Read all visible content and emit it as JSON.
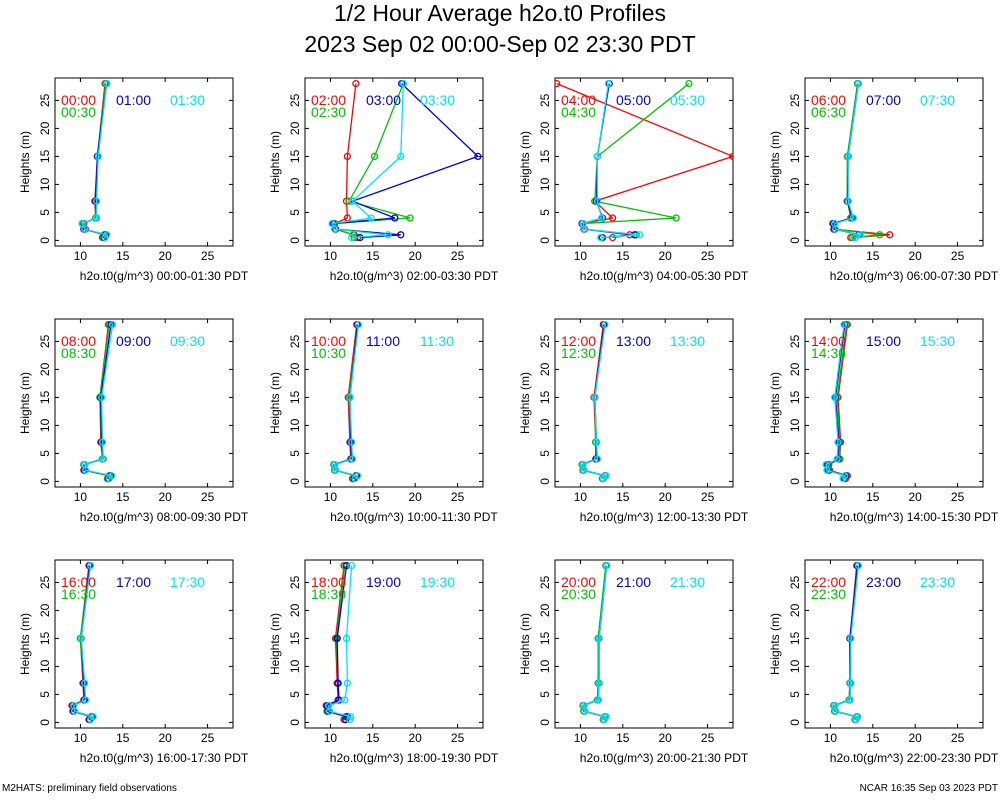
{
  "header": {
    "title": "1/2 Hour Average h2o.t0 Profiles",
    "subtitle": "2023 Sep 02 00:00-Sep 02 23:30 PDT"
  },
  "footer": {
    "left": "M2HATS: preliminary field observations",
    "right": "NCAR 16:35 Sep 03 2023 PDT"
  },
  "colors": {
    "first": "#ff0000",
    "second": "#00c000",
    "third": "#0000d0",
    "fourth": "#00e0ff"
  },
  "chart_data": [
    {
      "type": "line",
      "xlabel": "h2o.t0(g/m^3) 00:00-01:30 PDT",
      "ylabel": "Heights (m)",
      "xlim": [
        7,
        28
      ],
      "ylim": [
        -1,
        29
      ],
      "xticks": [
        "10",
        "15",
        "20",
        "25"
      ],
      "yticks": [
        "0",
        "5",
        "10",
        "15",
        "20",
        "25"
      ],
      "heights": [
        0.5,
        1,
        2,
        3,
        4,
        7,
        15,
        28
      ],
      "series": [
        {
          "name": "00:00",
          "values": [
            12.6,
            12.8,
            10.6,
            10.4,
            11.8,
            11.7,
            12.0,
            12.9
          ]
        },
        {
          "name": "00:30",
          "values": [
            12.7,
            12.9,
            10.5,
            10.3,
            11.8,
            11.8,
            12.0,
            13.0
          ]
        },
        {
          "name": "01:00",
          "values": [
            12.8,
            13.0,
            10.4,
            10.2,
            11.9,
            11.8,
            12.0,
            13.1
          ]
        },
        {
          "name": "01:30",
          "values": [
            12.9,
            13.1,
            10.5,
            10.2,
            11.9,
            11.9,
            12.1,
            13.1
          ]
        }
      ]
    },
    {
      "type": "line",
      "xlabel": "h2o.t0(g/m^3) 02:00-03:30 PDT",
      "ylabel": "Heights (m)",
      "xlim": [
        7,
        28
      ],
      "ylim": [
        -1,
        29
      ],
      "xticks": [
        "10",
        "15",
        "20",
        "25"
      ],
      "yticks": [
        "0",
        "5",
        "10",
        "15",
        "20",
        "25"
      ],
      "heights": [
        0.5,
        1,
        2,
        3,
        4,
        7,
        15,
        28
      ],
      "series": [
        {
          "name": "02:00",
          "values": [
            13.2,
            12.8,
            10.6,
            10.5,
            12.0,
            11.9,
            12.0,
            13.0
          ]
        },
        {
          "name": "02:30",
          "values": [
            12.8,
            12.7,
            10.6,
            10.4,
            19.4,
            12.2,
            15.2,
            18.6
          ]
        },
        {
          "name": "03:00",
          "values": [
            13.5,
            18.3,
            10.6,
            10.3,
            17.6,
            12.6,
            27.4,
            18.4
          ]
        },
        {
          "name": "03:30",
          "values": [
            12.5,
            16.8,
            10.5,
            10.2,
            14.8,
            12.6,
            18.3,
            18.6
          ]
        }
      ]
    },
    {
      "type": "line",
      "xlabel": "h2o.t0(g/m^3) 04:00-05:30 PDT",
      "ylabel": "Heights (m)",
      "xlim": [
        7,
        28
      ],
      "ylim": [
        -1,
        29
      ],
      "xticks": [
        "10",
        "15",
        "20",
        "25"
      ],
      "yticks": [
        "0",
        "5",
        "10",
        "15",
        "20",
        "25"
      ],
      "heights": [
        0.5,
        1,
        2,
        3,
        4,
        7,
        15,
        28
      ],
      "series": [
        {
          "name": "04:00",
          "values": [
            13.8,
            15.8,
            10.5,
            10.3,
            13.8,
            11.7,
            28.0,
            7.2
          ]
        },
        {
          "name": "04:30",
          "values": [
            12.5,
            16.6,
            10.4,
            10.2,
            21.3,
            11.7,
            12.0,
            22.8
          ]
        },
        {
          "name": "05:00",
          "values": [
            12.6,
            16.4,
            10.4,
            10.2,
            12.6,
            11.9,
            12.0,
            13.4
          ]
        },
        {
          "name": "05:30",
          "values": [
            12.4,
            17.0,
            10.4,
            10.3,
            12.5,
            12.0,
            12.0,
            13.3
          ]
        }
      ]
    },
    {
      "type": "line",
      "xlabel": "h2o.t0(g/m^3) 06:00-07:30 PDT",
      "ylabel": "Heights (m)",
      "xlim": [
        7,
        28
      ],
      "ylim": [
        -1,
        29
      ],
      "xticks": [
        "10",
        "15",
        "20",
        "25"
      ],
      "yticks": [
        "0",
        "5",
        "10",
        "15",
        "20",
        "25"
      ],
      "heights": [
        0.5,
        1,
        2,
        3,
        4,
        7,
        15,
        28
      ],
      "series": [
        {
          "name": "06:00",
          "values": [
            12.4,
            17.0,
            10.4,
            10.3,
            12.4,
            12.0,
            12.0,
            13.2
          ]
        },
        {
          "name": "06:30",
          "values": [
            12.6,
            15.8,
            10.5,
            10.4,
            12.5,
            12.0,
            12.0,
            13.2
          ]
        },
        {
          "name": "07:00",
          "values": [
            12.9,
            13.4,
            10.5,
            10.3,
            12.6,
            12.0,
            12.1,
            13.3
          ]
        },
        {
          "name": "07:30",
          "values": [
            12.9,
            13.5,
            10.6,
            10.5,
            12.7,
            12.1,
            12.1,
            13.3
          ]
        }
      ]
    },
    {
      "type": "line",
      "xlabel": "h2o.t0(g/m^3) 08:00-09:30 PDT",
      "ylabel": "Heights (m)",
      "xlim": [
        7,
        28
      ],
      "ylim": [
        -1,
        29
      ],
      "xticks": [
        "10",
        "15",
        "20",
        "25"
      ],
      "yticks": [
        "0",
        "5",
        "10",
        "15",
        "20",
        "25"
      ],
      "heights": [
        0.5,
        1,
        2,
        3,
        4,
        7,
        15,
        28
      ],
      "series": [
        {
          "name": "08:00",
          "values": [
            13.2,
            13.4,
            10.4,
            10.4,
            12.6,
            12.4,
            12.3,
            13.3
          ]
        },
        {
          "name": "08:30",
          "values": [
            13.2,
            13.5,
            10.5,
            10.4,
            12.6,
            12.5,
            12.3,
            13.4
          ]
        },
        {
          "name": "09:00",
          "values": [
            13.3,
            13.6,
            10.5,
            10.5,
            12.7,
            12.5,
            12.4,
            13.6
          ]
        },
        {
          "name": "09:30",
          "values": [
            13.4,
            13.7,
            10.6,
            10.5,
            12.7,
            12.6,
            12.5,
            13.8
          ]
        }
      ]
    },
    {
      "type": "line",
      "xlabel": "h2o.t0(g/m^3) 10:00-11:30 PDT",
      "ylabel": "Heights (m)",
      "xlim": [
        7,
        28
      ],
      "ylim": [
        -1,
        29
      ],
      "xticks": [
        "10",
        "15",
        "20",
        "25"
      ],
      "yticks": [
        "0",
        "5",
        "10",
        "15",
        "20",
        "25"
      ],
      "heights": [
        0.5,
        1,
        2,
        3,
        4,
        7,
        15,
        28
      ],
      "series": [
        {
          "name": "10:00",
          "values": [
            12.6,
            13.0,
            10.5,
            10.4,
            12.4,
            12.3,
            12.1,
            13.1
          ]
        },
        {
          "name": "10:30",
          "values": [
            12.7,
            13.1,
            10.5,
            10.4,
            12.5,
            12.4,
            12.2,
            13.2
          ]
        },
        {
          "name": "11:00",
          "values": [
            12.8,
            13.1,
            10.6,
            10.5,
            12.5,
            12.4,
            12.3,
            13.2
          ]
        },
        {
          "name": "11:30",
          "values": [
            12.9,
            13.2,
            10.6,
            10.5,
            12.6,
            12.5,
            12.3,
            13.3
          ]
        }
      ]
    },
    {
      "type": "line",
      "xlabel": "h2o.t0(g/m^3) 12:00-13:30 PDT",
      "ylabel": "Heights (m)",
      "xlim": [
        7,
        28
      ],
      "ylim": [
        -1,
        29
      ],
      "xticks": [
        "10",
        "15",
        "20",
        "25"
      ],
      "yticks": [
        "0",
        "5",
        "10",
        "15",
        "20",
        "25"
      ],
      "heights": [
        0.5,
        1,
        2,
        3,
        4,
        7,
        15,
        28
      ],
      "series": [
        {
          "name": "12:00",
          "values": [
            12.6,
            12.9,
            10.3,
            10.2,
            11.8,
            11.8,
            11.6,
            12.7
          ]
        },
        {
          "name": "12:30",
          "values": [
            12.6,
            12.9,
            10.3,
            10.2,
            11.9,
            11.8,
            11.7,
            12.8
          ]
        },
        {
          "name": "13:00",
          "values": [
            12.7,
            13.0,
            10.4,
            10.3,
            11.9,
            11.9,
            11.7,
            12.8
          ]
        },
        {
          "name": "13:30",
          "values": [
            12.7,
            13.0,
            10.4,
            10.3,
            12.0,
            11.9,
            11.7,
            12.9
          ]
        }
      ]
    },
    {
      "type": "line",
      "xlabel": "h2o.t0(g/m^3) 14:00-15:30 PDT",
      "ylabel": "Heights (m)",
      "xlim": [
        7,
        28
      ],
      "ylim": [
        -1,
        29
      ],
      "xticks": [
        "10",
        "15",
        "20",
        "25"
      ],
      "yticks": [
        "0",
        "5",
        "10",
        "15",
        "20",
        "25"
      ],
      "heights": [
        0.5,
        1,
        2,
        3,
        4,
        7,
        15,
        28
      ],
      "series": [
        {
          "name": "14:00",
          "values": [
            11.8,
            12.0,
            9.9,
            9.8,
            11.1,
            11.2,
            10.9,
            12.0
          ]
        },
        {
          "name": "14:30",
          "values": [
            11.7,
            11.9,
            9.8,
            9.7,
            11.1,
            11.1,
            10.8,
            11.9
          ]
        },
        {
          "name": "15:00",
          "values": [
            11.6,
            11.8,
            9.7,
            9.6,
            10.9,
            11.0,
            10.6,
            11.7
          ]
        },
        {
          "name": "15:30",
          "values": [
            11.5,
            11.7,
            9.6,
            9.5,
            10.8,
            10.9,
            10.5,
            11.6
          ]
        }
      ]
    },
    {
      "type": "line",
      "xlabel": "h2o.t0(g/m^3) 16:00-17:30 PDT",
      "ylabel": "Heights (m)",
      "xlim": [
        7,
        28
      ],
      "ylim": [
        -1,
        29
      ],
      "xticks": [
        "10",
        "15",
        "20",
        "25"
      ],
      "yticks": [
        "0",
        "5",
        "10",
        "15",
        "20",
        "25"
      ],
      "heights": [
        0.5,
        1,
        2,
        3,
        4,
        7,
        15,
        28
      ],
      "series": [
        {
          "name": "16:00",
          "values": [
            11.0,
            11.3,
            9.1,
            9.0,
            10.4,
            10.3,
            10.0,
            11.0
          ]
        },
        {
          "name": "16:30",
          "values": [
            11.1,
            11.3,
            9.2,
            9.1,
            10.5,
            10.4,
            10.0,
            11.1
          ]
        },
        {
          "name": "17:00",
          "values": [
            11.1,
            11.4,
            9.2,
            9.1,
            10.5,
            10.4,
            10.1,
            11.1
          ]
        },
        {
          "name": "17:30",
          "values": [
            11.2,
            11.5,
            9.3,
            9.2,
            10.6,
            10.5,
            10.1,
            11.2
          ]
        }
      ]
    },
    {
      "type": "line",
      "xlabel": "h2o.t0(g/m^3) 18:00-19:30 PDT",
      "ylabel": "Heights (m)",
      "xlim": [
        7,
        28
      ],
      "ylim": [
        -1,
        29
      ],
      "xticks": [
        "10",
        "15",
        "20",
        "25"
      ],
      "yticks": [
        "0",
        "5",
        "10",
        "15",
        "20",
        "25"
      ],
      "heights": [
        0.5,
        1,
        2,
        3,
        4,
        7,
        15,
        28
      ],
      "series": [
        {
          "name": "18:00",
          "values": [
            11.6,
            11.8,
            9.6,
            9.5,
            10.9,
            10.8,
            10.6,
            11.6
          ]
        },
        {
          "name": "18:30",
          "values": [
            11.7,
            11.9,
            9.6,
            9.6,
            11.0,
            10.9,
            10.7,
            11.7
          ]
        },
        {
          "name": "19:00",
          "values": [
            11.8,
            12.0,
            9.7,
            9.6,
            11.0,
            10.9,
            10.8,
            11.9
          ]
        },
        {
          "name": "19:30",
          "values": [
            12.3,
            12.4,
            9.9,
            9.8,
            11.7,
            12.0,
            11.9,
            12.5
          ]
        }
      ]
    },
    {
      "type": "line",
      "xlabel": "h2o.t0(g/m^3) 20:00-21:30 PDT",
      "ylabel": "Heights (m)",
      "xlim": [
        7,
        28
      ],
      "ylim": [
        -1,
        29
      ],
      "xticks": [
        "10",
        "15",
        "20",
        "25"
      ],
      "yticks": [
        "0",
        "5",
        "10",
        "15",
        "20",
        "25"
      ],
      "heights": [
        0.5,
        1,
        2,
        3,
        4,
        7,
        15,
        28
      ],
      "series": [
        {
          "name": "20:00",
          "values": [
            12.7,
            12.9,
            10.4,
            10.3,
            12.0,
            12.1,
            12.1,
            13.0
          ]
        },
        {
          "name": "20:30",
          "values": [
            12.7,
            12.9,
            10.4,
            10.3,
            12.0,
            12.1,
            12.1,
            13.0
          ]
        },
        {
          "name": "21:00",
          "values": [
            12.8,
            13.0,
            10.5,
            10.4,
            12.1,
            12.2,
            12.2,
            13.1
          ]
        },
        {
          "name": "21:30",
          "values": [
            12.8,
            13.0,
            10.5,
            10.4,
            12.1,
            12.2,
            12.2,
            13.1
          ]
        }
      ]
    },
    {
      "type": "line",
      "xlabel": "h2o.t0(g/m^3) 22:00-23:30 PDT",
      "ylabel": "Heights (m)",
      "xlim": [
        7,
        28
      ],
      "ylim": [
        -1,
        29
      ],
      "xticks": [
        "10",
        "15",
        "20",
        "25"
      ],
      "yticks": [
        "0",
        "5",
        "10",
        "15",
        "20",
        "25"
      ],
      "heights": [
        0.5,
        1,
        2,
        3,
        4,
        7,
        15,
        28
      ],
      "series": [
        {
          "name": "22:00",
          "values": [
            12.9,
            13.1,
            10.5,
            10.4,
            12.2,
            12.3,
            12.3,
            13.1
          ]
        },
        {
          "name": "22:30",
          "values": [
            12.9,
            13.1,
            10.5,
            10.4,
            12.2,
            12.3,
            12.3,
            13.2
          ]
        },
        {
          "name": "23:00",
          "values": [
            13.0,
            13.2,
            10.6,
            10.5,
            12.3,
            12.4,
            12.3,
            13.2
          ]
        },
        {
          "name": "23:30",
          "values": [
            13.0,
            13.2,
            10.6,
            10.5,
            12.3,
            12.4,
            12.4,
            13.3
          ]
        }
      ]
    }
  ]
}
